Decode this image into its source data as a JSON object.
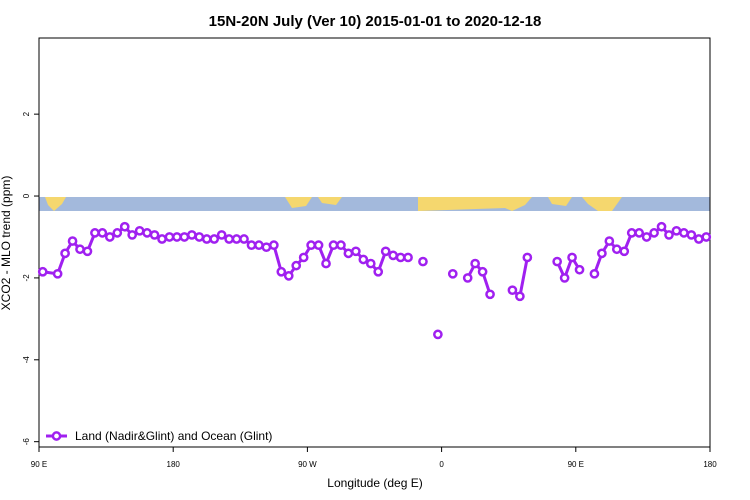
{
  "chart_data": {
    "type": "line",
    "title": "15N-20N July (Ver 10)   2015-01-01 to 2020-12-18",
    "x_label": "Longitude (deg E)",
    "y_label": "XCO2 - MLO trend (ppm)",
    "xlim": [
      90,
      540
    ],
    "ylim": [
      -6.13,
      3.86
    ],
    "xticks": [
      {
        "value": 90,
        "label": "90 E"
      },
      180,
      {
        "value": 270,
        "label": "90 W"
      },
      {
        "value": 360,
        "label": "0"
      },
      {
        "value": 450,
        "label": "90 E"
      },
      {
        "value": 540,
        "label": "180"
      }
    ],
    "yticks": [
      -6,
      -4,
      -2,
      0,
      2
    ],
    "legend": "bottomleft",
    "x": [
      92.5,
      102.5,
      107.5,
      112.5,
      117.5,
      122.5,
      127.5,
      132.5,
      137.5,
      142.5,
      147.5,
      152.5,
      157.5,
      162.5,
      167.5,
      172.5,
      177.5,
      182.5,
      187.5,
      192.5,
      197.5,
      202.5,
      207.5,
      212.5,
      217.5,
      222.5,
      227.5,
      232.5,
      237.5,
      242.5,
      247.5,
      252.5,
      257.5,
      262.5,
      267.5,
      272.5,
      277.5,
      282.5,
      287.5,
      292.5,
      297.5,
      302.5,
      307.5,
      312.5,
      317.5,
      322.5,
      327.5,
      332.5,
      337.5,
      342.5,
      347.5,
      352.5,
      357.5,
      362.5,
      367.5,
      372.5,
      377.5,
      382.5,
      387.5,
      392.5,
      397.5,
      402.5,
      407.5,
      412.5,
      417.5,
      422.5,
      427.5,
      432.5,
      437.5,
      442.5,
      447.5,
      452.5,
      457.5,
      462.5,
      467.5,
      472.5,
      477.5,
      482.5,
      487.5,
      492.5,
      497.5,
      502.5,
      507.5,
      512.5,
      517.5,
      522.5,
      527.5,
      532.5,
      537.5
    ],
    "series": [
      {
        "name": "Land (Nadir&Glint) and Ocean (Glint)",
        "color": "#a020f0",
        "values": [
          -1.85,
          -1.9,
          -1.4,
          -1.1,
          -1.3,
          -1.35,
          -0.9,
          -0.9,
          -1.0,
          -0.9,
          -0.75,
          -0.95,
          -0.85,
          -0.9,
          -0.95,
          -1.05,
          -1.0,
          -1.0,
          -1.0,
          -0.95,
          -1.0,
          -1.05,
          -1.05,
          -0.95,
          -1.05,
          -1.05,
          -1.05,
          -1.2,
          -1.2,
          -1.25,
          -1.2,
          -1.85,
          -1.95,
          -1.7,
          -1.5,
          -1.2,
          -1.2,
          -1.65,
          -1.2,
          -1.2,
          -1.4,
          -1.35,
          -1.55,
          -1.65,
          -1.85,
          -1.35,
          -1.45,
          -1.5,
          -1.5,
          null,
          -1.6,
          null,
          -3.38,
          null,
          -1.9,
          null,
          -2.0,
          -1.65,
          -1.85,
          -2.4,
          null,
          null,
          -2.3,
          -2.45,
          -1.5,
          null,
          null,
          null,
          -1.6,
          -2.0,
          -1.5,
          -1.8,
          null,
          -1.9,
          -1.4,
          -1.1,
          -1.3,
          -1.35,
          -0.9,
          -0.9,
          -1.0,
          -0.9,
          -0.75,
          -0.95,
          -0.85,
          -0.9,
          -0.95,
          -1.05,
          -1.0
        ]
      }
    ]
  }
}
